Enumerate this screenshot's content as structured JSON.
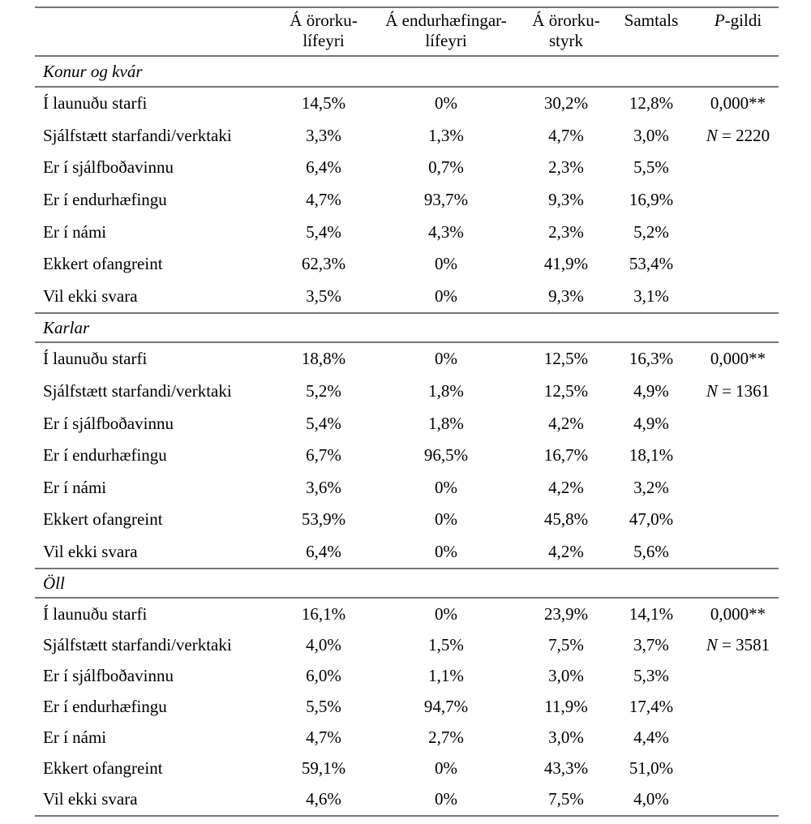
{
  "header": {
    "cols": [
      {
        "line1": "Á örorku-",
        "line2": "lífeyri"
      },
      {
        "line1": "Á endurhæfingar-",
        "line2": "lífeyri"
      },
      {
        "line1": "Á örorku-",
        "line2": "styrk"
      },
      {
        "line1": "Samtals",
        "line2": ""
      },
      {
        "italic": "P",
        "rest": "-gildi"
      }
    ]
  },
  "sections": [
    {
      "title": "Konur og kvár",
      "rows": [
        {
          "label": "Í launuðu starfi",
          "values": [
            "14,5%",
            "0%",
            "30,2%",
            "12,8%"
          ],
          "stat": "0,000**"
        },
        {
          "label": "Sjálfstætt starfandi/verktaki",
          "values": [
            "3,3%",
            "1,3%",
            "4,7%",
            "3,0%"
          ],
          "stat_n": "N",
          "stat_rest": " = 2220"
        },
        {
          "label": "Er í sjálfboðavinnu",
          "values": [
            "6,4%",
            "0,7%",
            "2,3%",
            "5,5%"
          ],
          "stat": ""
        },
        {
          "label": "Er í endurhæfingu",
          "values": [
            "4,7%",
            "93,7%",
            "9,3%",
            "16,9%"
          ],
          "stat": ""
        },
        {
          "label": "Er í námi",
          "values": [
            "5,4%",
            "4,3%",
            "2,3%",
            "5,2%"
          ],
          "stat": ""
        },
        {
          "label": "Ekkert ofangreint",
          "values": [
            "62,3%",
            "0%",
            "41,9%",
            "53,4%"
          ],
          "stat": ""
        },
        {
          "label": "Vil ekki svara",
          "values": [
            "3,5%",
            "0%",
            "9,3%",
            "3,1%"
          ],
          "stat": ""
        }
      ]
    },
    {
      "title": "Karlar",
      "rows": [
        {
          "label": "Í launuðu starfi",
          "values": [
            "18,8%",
            "0%",
            "12,5%",
            "16,3%"
          ],
          "stat": "0,000**"
        },
        {
          "label": "Sjálfstætt starfandi/verktaki",
          "values": [
            "5,2%",
            "1,8%",
            "12,5%",
            "4,9%"
          ],
          "stat_n": "N",
          "stat_rest": " = 1361"
        },
        {
          "label": "Er í sjálfboðavinnu",
          "values": [
            "5,4%",
            "1,8%",
            "4,2%",
            "4,9%"
          ],
          "stat": ""
        },
        {
          "label": "Er í endurhæfingu",
          "values": [
            "6,7%",
            "96,5%",
            "16,7%",
            "18,1%"
          ],
          "stat": ""
        },
        {
          "label": "Er í námi",
          "values": [
            "3,6%",
            "0%",
            "4,2%",
            "3,2%"
          ],
          "stat": ""
        },
        {
          "label": "Ekkert ofangreint",
          "values": [
            "53,9%",
            "0%",
            "45,8%",
            "47,0%"
          ],
          "stat": ""
        },
        {
          "label": "Vil ekki svara",
          "values": [
            "6,4%",
            "0%",
            "4,2%",
            "5,6%"
          ],
          "stat": ""
        }
      ]
    },
    {
      "title": "Öll",
      "rows": [
        {
          "label": "Í launuðu starfi",
          "values": [
            "16,1%",
            "0%",
            "23,9%",
            "14,1%"
          ],
          "stat": "0,000**"
        },
        {
          "label": "Sjálfstætt starfandi/verktaki",
          "values": [
            "4,0%",
            "1,5%",
            "7,5%",
            "3,7%"
          ],
          "stat_n": "N",
          "stat_rest": " = 3581"
        },
        {
          "label": "Er í sjálfboðavinnu",
          "values": [
            "6,0%",
            "1,1%",
            "3,0%",
            "5,3%"
          ],
          "stat": ""
        },
        {
          "label": "Er í endurhæfingu",
          "values": [
            "5,5%",
            "94,7%",
            "11,9%",
            "17,4%"
          ],
          "stat": ""
        },
        {
          "label": "Er í námi",
          "values": [
            "4,7%",
            "2,7%",
            "3,0%",
            "4,4%"
          ],
          "stat": ""
        },
        {
          "label": "Ekkert ofangreint",
          "values": [
            "59,1%",
            "0%",
            "43,3%",
            "51,0%"
          ],
          "stat": ""
        },
        {
          "label": "Vil ekki svara",
          "values": [
            "4,6%",
            "0%",
            "7,5%",
            "4,0%"
          ],
          "stat": ""
        }
      ]
    }
  ],
  "colors": {
    "rule": "#777777",
    "text": "#000000",
    "background": "#ffffff"
  }
}
